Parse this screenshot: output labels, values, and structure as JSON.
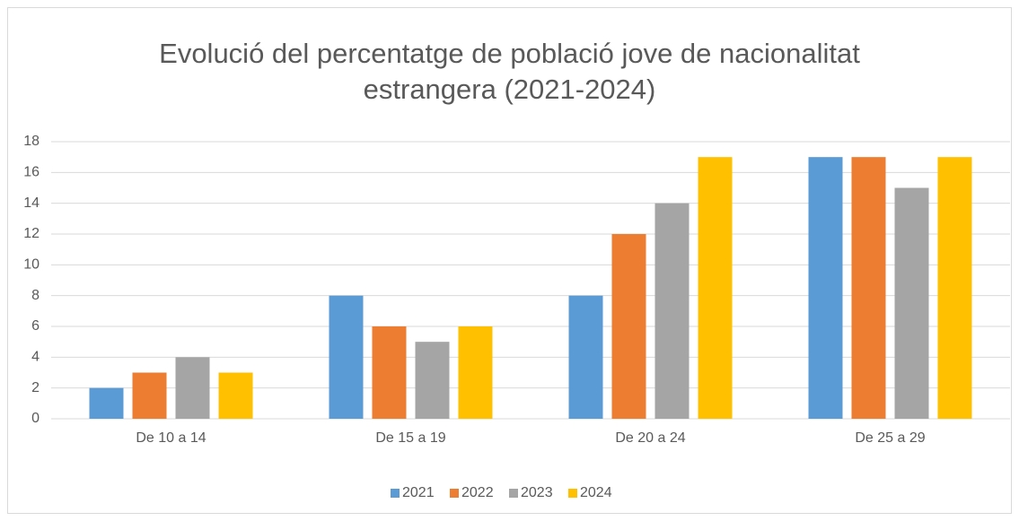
{
  "chart_data": {
    "type": "bar",
    "title": "Evolució del percentatge de població jove de nacionalitat estrangera (2021-2024)",
    "categories": [
      "De 10 a 14",
      "De 15 a 19",
      "De 20 a 24",
      "De 25 a 29"
    ],
    "series": [
      {
        "name": "2021",
        "color": "#5b9bd5",
        "values": [
          2,
          8,
          8,
          17
        ]
      },
      {
        "name": "2022",
        "color": "#ed7d31",
        "values": [
          3,
          6,
          12,
          17
        ]
      },
      {
        "name": "2023",
        "color": "#a5a5a5",
        "values": [
          4,
          5,
          14,
          15
        ]
      },
      {
        "name": "2024",
        "color": "#ffc000",
        "values": [
          3,
          6,
          17,
          17
        ]
      }
    ],
    "ylim": [
      0,
      18
    ],
    "yticks": [
      0,
      2,
      4,
      6,
      8,
      10,
      12,
      14,
      16,
      18
    ],
    "grid": true,
    "legend": "bottom"
  }
}
